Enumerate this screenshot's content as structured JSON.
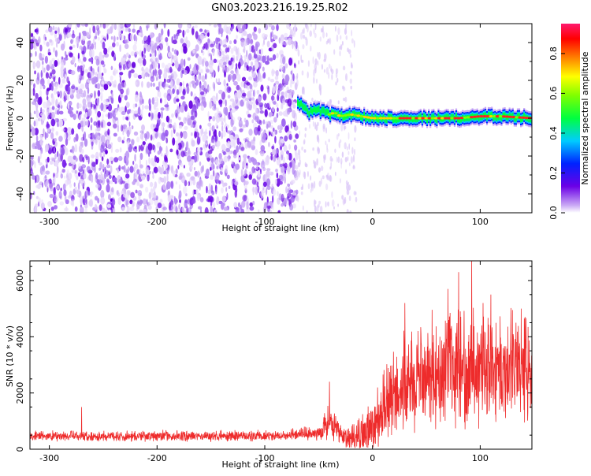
{
  "title": "GN03.2023.216.19.25.R02",
  "chart_data": [
    {
      "type": "heatmap",
      "xlabel": "Height of straight line (km)",
      "ylabel": "Frequency (Hz)",
      "xlim": [
        -318,
        148
      ],
      "ylim": [
        -50,
        50
      ],
      "x_ticks": [
        -300,
        -200,
        -100,
        0,
        100
      ],
      "y_ticks": [
        -40,
        -20,
        0,
        20,
        40
      ],
      "noise_region_x": [
        -318,
        -70
      ],
      "ridge": [
        {
          "x": -70,
          "y": 9
        },
        {
          "x": -65,
          "y": 6
        },
        {
          "x": -60,
          "y": 3
        },
        {
          "x": -55,
          "y": 5
        },
        {
          "x": -50,
          "y": 4
        },
        {
          "x": -45,
          "y": 3
        },
        {
          "x": -40,
          "y": 2
        },
        {
          "x": -35,
          "y": 3
        },
        {
          "x": -30,
          "y": 1
        },
        {
          "x": -20,
          "y": 2
        },
        {
          "x": -10,
          "y": 1
        },
        {
          "x": 0,
          "y": 0
        },
        {
          "x": 20,
          "y": 0
        },
        {
          "x": 40,
          "y": 0
        },
        {
          "x": 60,
          "y": 0
        },
        {
          "x": 80,
          "y": 0
        },
        {
          "x": 100,
          "y": 1
        },
        {
          "x": 120,
          "y": 1
        },
        {
          "x": 148,
          "y": 0
        }
      ],
      "colorbar": {
        "label": "Normalized spectral amplitude",
        "range": [
          0,
          0.95
        ],
        "ticks": [
          "0.0",
          "0.2",
          "0.4",
          "0.6",
          "0.8"
        ]
      }
    },
    {
      "type": "line",
      "xlabel": "Height of straight line (km)",
      "ylabel": "SNR (10 * v/v)",
      "xlim": [
        -318,
        148
      ],
      "ylim": [
        0,
        6700
      ],
      "x_ticks": [
        -300,
        -200,
        -100,
        0,
        100
      ],
      "y_ticks": [
        0,
        2000,
        4000,
        6000
      ],
      "series": [
        {
          "color": "#ee2b2b",
          "envelope": [
            {
              "x": -318,
              "base": 450,
              "spread": 300
            },
            {
              "x": -100,
              "base": 450,
              "spread": 300
            },
            {
              "x": -50,
              "base": 550,
              "spread": 400
            },
            {
              "x": -40,
              "base": 900,
              "spread": 1200
            },
            {
              "x": -30,
              "base": 500,
              "spread": 600
            },
            {
              "x": -15,
              "base": 300,
              "spread": 900
            },
            {
              "x": 0,
              "base": 700,
              "spread": 1600
            },
            {
              "x": 20,
              "base": 1800,
              "spread": 2600
            },
            {
              "x": 50,
              "base": 2600,
              "spread": 3000
            },
            {
              "x": 100,
              "base": 2800,
              "spread": 3200
            },
            {
              "x": 148,
              "base": 2800,
              "spread": 2800
            }
          ],
          "peaks": [
            {
              "x": -40,
              "y": 2400
            },
            {
              "x": 30,
              "y": 5200
            },
            {
              "x": 70,
              "y": 5700
            },
            {
              "x": 80,
              "y": 6300
            },
            {
              "x": 92,
              "y": 6700
            },
            {
              "x": 110,
              "y": 5500
            },
            {
              "x": 138,
              "y": 5000
            },
            {
              "x": -270,
              "y": 1500
            }
          ]
        }
      ]
    }
  ]
}
